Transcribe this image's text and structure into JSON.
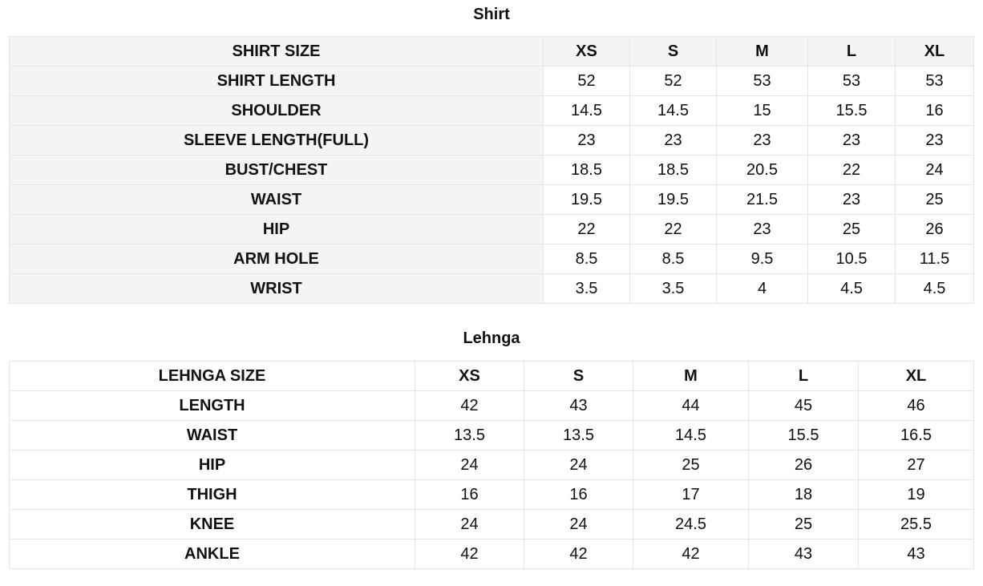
{
  "shirt": {
    "title": "Shirt",
    "header": [
      "SHIRT SIZE",
      "XS",
      "S",
      "M",
      "L",
      "XL"
    ],
    "rows": [
      [
        "SHIRT LENGTH",
        "52",
        "52",
        "53",
        "53",
        "53"
      ],
      [
        "SHOULDER",
        "14.5",
        "14.5",
        "15",
        "15.5",
        "16"
      ],
      [
        "SLEEVE LENGTH(FULL)",
        "23",
        "23",
        "23",
        "23",
        "23"
      ],
      [
        "BUST/CHEST",
        "18.5",
        "18.5",
        "20.5",
        "22",
        "24"
      ],
      [
        "WAIST",
        "19.5",
        "19.5",
        "21.5",
        "23",
        "25"
      ],
      [
        "HIP",
        "22",
        "22",
        "23",
        "25",
        "26"
      ],
      [
        "ARM HOLE",
        "8.5",
        "8.5",
        "9.5",
        "10.5",
        "11.5"
      ],
      [
        "WRIST",
        "3.5",
        "3.5",
        "4",
        "4.5",
        "4.5"
      ]
    ]
  },
  "lehnga": {
    "title": "Lehnga",
    "header": [
      "LEHNGA SIZE",
      "XS",
      "S",
      "M",
      "L",
      "XL"
    ],
    "rows": [
      [
        "LENGTH",
        "42",
        "43",
        "44",
        "45",
        "46"
      ],
      [
        "WAIST",
        "13.5",
        "13.5",
        "14.5",
        "15.5",
        "16.5"
      ],
      [
        "HIP",
        "24",
        "24",
        "25",
        "26",
        "27"
      ],
      [
        "THIGH",
        "16",
        "16",
        "17",
        "18",
        "19"
      ],
      [
        "KNEE",
        "24",
        "24",
        "24.5",
        "25",
        "25.5"
      ],
      [
        "ANKLE",
        "42",
        "42",
        "42",
        "43",
        "43"
      ]
    ]
  }
}
